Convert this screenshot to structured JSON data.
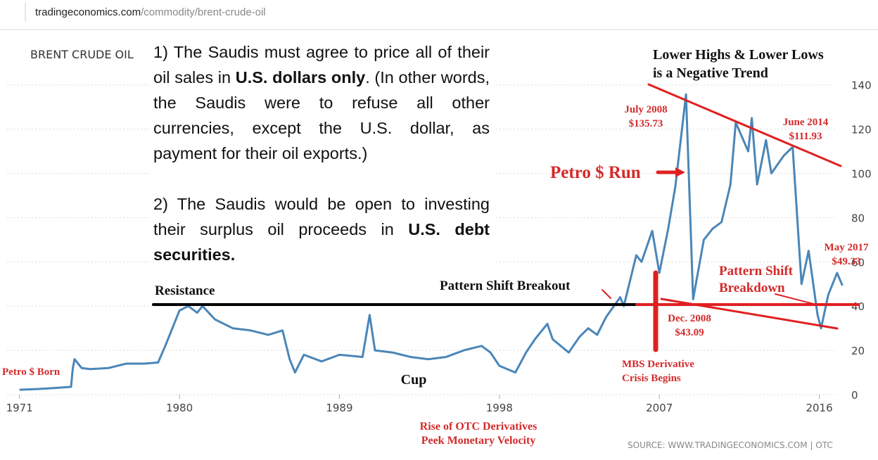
{
  "browser": {
    "url_host": "tradingeconomics.com",
    "url_path": "/commodity/brent-crude-oil"
  },
  "chart_data": {
    "type": "line",
    "title": "BRENT CRUDE OIL",
    "source": "SOURCE: WWW.TRADINGECONOMICS.COM | OTC",
    "color": "#4a86b8",
    "x": [
      1971,
      1972,
      1973,
      1973.9,
      1974.0,
      1974.1,
      1974.5,
      1975,
      1976,
      1977,
      1978,
      1978.8,
      1979.2,
      1979.6,
      1980,
      1980.5,
      1981,
      1981.3,
      1982,
      1983,
      1984,
      1985,
      1985.8,
      1986.2,
      1986.5,
      1987,
      1988,
      1989,
      1990.3,
      1990.7,
      1991,
      1992,
      1993,
      1994,
      1995,
      1996,
      1997,
      1997.5,
      1998,
      1998.9,
      1999.5,
      2000,
      2000.7,
      2001,
      2001.9,
      2002.5,
      2003,
      2003.5,
      2004,
      2004.8,
      2005,
      2005.7,
      2006,
      2006.6,
      2007,
      2007.5,
      2007.9,
      2008.5,
      2008.9,
      2009.5,
      2010,
      2010.5,
      2011,
      2011.3,
      2012,
      2012.2,
      2012.5,
      2013,
      2013.3,
      2014,
      2014.5,
      2015,
      2015.4,
      2015.9,
      2016.1,
      2016.5,
      2017,
      2017.3
    ],
    "values": [
      2.2,
      2.5,
      3,
      3.5,
      12,
      16,
      12,
      11.5,
      12,
      14,
      14,
      14.5,
      22,
      30,
      38,
      40,
      37,
      40,
      34,
      30,
      29,
      27,
      29,
      16,
      10,
      18,
      15,
      18,
      17,
      36,
      20,
      19,
      17,
      16,
      17,
      20,
      22,
      19,
      13,
      10,
      19,
      25,
      32,
      25,
      19,
      26,
      30,
      27,
      35,
      44,
      40,
      63,
      60,
      74,
      55,
      75,
      94,
      135.73,
      43.09,
      70,
      75,
      78,
      95,
      123,
      110,
      125,
      95,
      115,
      100,
      108,
      111.93,
      50,
      65,
      36,
      30,
      45,
      55,
      49.33
    ],
    "xlim": [
      1970.3,
      2017.6
    ],
    "xticks": [
      1971,
      1980,
      1989,
      1998,
      2007,
      2016
    ],
    "ylim": [
      0,
      145
    ],
    "yticks": [
      0,
      20,
      40,
      60,
      80,
      100,
      120,
      140
    ],
    "grid": true,
    "annotations": [
      {
        "lines": [
          "Petro $ Born"
        ],
        "color": "#d42a2a"
      },
      {
        "lines": [
          "Rise of OTC Derivatives",
          "Peek Monetary Velocity"
        ],
        "color": "#d42a2a"
      },
      {
        "lines": [
          "Cup"
        ],
        "color": "#111111"
      },
      {
        "lines": [
          "Resistance"
        ],
        "color": "#111111"
      },
      {
        "lines": [
          "Pattern Shift Breakout"
        ],
        "color": "#111111"
      },
      {
        "lines": [
          "Lower Highs & Lower Lows",
          "is a Negative Trend"
        ],
        "color": "#111111"
      },
      {
        "lines": [
          "July 2008",
          "$135.73"
        ],
        "color": "#d42a2a"
      },
      {
        "lines": [
          "June 2014",
          "$111.93"
        ],
        "color": "#d42a2a"
      },
      {
        "lines": [
          "Petro $ Run"
        ],
        "color": "#d42a2a"
      },
      {
        "lines": [
          "Pattern Shift",
          "Breakdown"
        ],
        "color": "#d42a2a"
      },
      {
        "lines": [
          "Dec. 2008",
          "$43.09"
        ],
        "color": "#d42a2a"
      },
      {
        "lines": [
          "MBS Derivative",
          "Crisis Begins"
        ],
        "color": "#d42a2a"
      },
      {
        "lines": [
          "May 2017",
          "$49.33"
        ],
        "color": "#d42a2a"
      }
    ]
  },
  "note": {
    "paragraphs": [
      [
        {
          "text": "1) The Saudis must agree to price all of their oil sales in ",
          "bold": false
        },
        {
          "text": "U.S. dollars only",
          "bold": true
        },
        {
          "text": ". (In other words, the Saudis were to refuse all other currencies, except the U.S. dollar, as payment for their oil exports.)",
          "bold": false
        }
      ],
      [
        {
          "text": "2) The Saudis would be open to investing their surplus oil proceeds in ",
          "bold": false
        },
        {
          "text": "U.S. debt securities.",
          "bold": true
        }
      ]
    ]
  }
}
